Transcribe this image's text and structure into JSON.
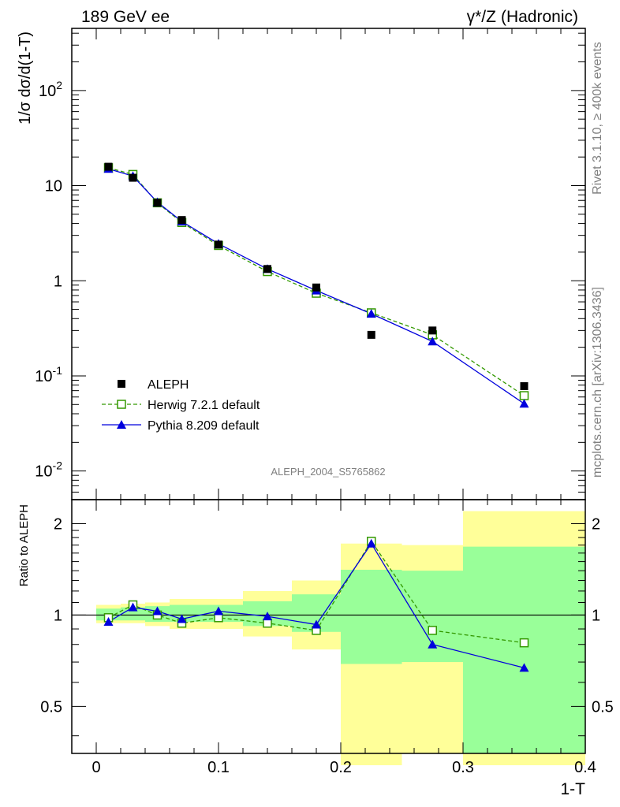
{
  "header": {
    "left": "189 GeV ee",
    "right_prefix": "γ*/Z",
    "right_suffix": "(Hadronic)"
  },
  "side_labels": {
    "top": "Rivet 3.1.10, ≥ 400k events",
    "bottom": "mcplots.cern.ch [arXiv:1306.3436]"
  },
  "watermark": "ALEPH_2004_S5765862",
  "colors": {
    "data": "#000000",
    "herwig": "#339900",
    "pythia": "#0000dd",
    "band_yellow": "#ffff99",
    "band_green": "#99ff99"
  },
  "chart_data": [
    {
      "type": "scatter",
      "log_y": true,
      "ylabel": "1/σ dσ/d(1-T)",
      "ytick_labels": [
        "10^-2",
        "10^-1",
        "1",
        "10",
        "10^2"
      ],
      "xlim": [
        -0.02,
        0.4
      ],
      "ylim": [
        0.005,
        450
      ],
      "legend_position": "bottom-left",
      "series": [
        {
          "name": "ALEPH",
          "marker": "filled-square",
          "x": [
            0.01,
            0.03,
            0.05,
            0.07,
            0.1,
            0.14,
            0.18,
            0.225,
            0.275,
            0.35
          ],
          "y": [
            15.8,
            12.1,
            6.6,
            4.35,
            2.4,
            1.33,
            0.85,
            0.27,
            0.3,
            0.078
          ]
        },
        {
          "name": "Herwig 7.2.1 default",
          "marker": "open-square",
          "line": "dashed",
          "x": [
            0.01,
            0.03,
            0.05,
            0.07,
            0.1,
            0.14,
            0.18,
            0.225,
            0.275,
            0.35
          ],
          "y": [
            15.4,
            13.1,
            6.6,
            4.1,
            2.35,
            1.25,
            0.74,
            0.46,
            0.27,
            0.062
          ]
        },
        {
          "name": "Pythia 8.209 default",
          "marker": "filled-triangle",
          "line": "solid",
          "x": [
            0.01,
            0.03,
            0.05,
            0.07,
            0.1,
            0.14,
            0.18,
            0.225,
            0.275,
            0.35
          ],
          "y": [
            15.0,
            12.6,
            6.7,
            4.2,
            2.45,
            1.33,
            0.79,
            0.45,
            0.23,
            0.051
          ]
        }
      ]
    },
    {
      "type": "line",
      "xlabel": "1-T",
      "ylabel": "Ratio to ALEPH",
      "xticks": [
        0,
        0.1,
        0.2,
        0.3,
        0.4
      ],
      "xtick_labels": [
        "0",
        "0.1",
        "0.2",
        "0.3",
        "0.4"
      ],
      "ytick_labels": [
        "0.5",
        "1",
        "2"
      ],
      "yticks": [
        0.5,
        1,
        2
      ],
      "xlim": [
        -0.02,
        0.4
      ],
      "ylim": [
        0.35,
        2.4
      ],
      "reference_line": 1,
      "bands": {
        "edges": [
          0,
          0.02,
          0.04,
          0.06,
          0.08,
          0.12,
          0.16,
          0.2,
          0.25,
          0.3,
          0.4
        ],
        "yellow": [
          [
            0.94,
            1.08
          ],
          [
            0.94,
            1.09
          ],
          [
            0.92,
            1.1
          ],
          [
            0.9,
            1.13
          ],
          [
            0.9,
            1.13
          ],
          [
            0.85,
            1.2
          ],
          [
            0.77,
            1.3
          ],
          [
            0.32,
            1.72
          ],
          [
            0.35,
            1.7
          ],
          [
            0.32,
            2.2
          ]
        ],
        "green": [
          [
            0.96,
            1.05
          ],
          [
            0.96,
            1.06
          ],
          [
            0.95,
            1.07
          ],
          [
            0.95,
            1.08
          ],
          [
            0.95,
            1.08
          ],
          [
            0.92,
            1.11
          ],
          [
            0.88,
            1.17
          ],
          [
            0.69,
            1.41
          ],
          [
            0.7,
            1.4
          ],
          [
            0.35,
            1.68
          ]
        ]
      },
      "series": [
        {
          "name": "Herwig 7.2.1 default",
          "x": [
            0.01,
            0.03,
            0.05,
            0.07,
            0.1,
            0.14,
            0.18,
            0.225,
            0.275,
            0.35
          ],
          "y": [
            0.98,
            1.08,
            1.0,
            0.94,
            0.98,
            0.94,
            0.89,
            1.75,
            0.89,
            0.81
          ]
        },
        {
          "name": "Pythia 8.209 default",
          "x": [
            0.01,
            0.03,
            0.05,
            0.07,
            0.1,
            0.14,
            0.18,
            0.225,
            0.275,
            0.35
          ],
          "y": [
            0.95,
            1.06,
            1.03,
            0.97,
            1.03,
            0.99,
            0.93,
            1.72,
            0.8,
            0.67
          ]
        }
      ]
    }
  ]
}
